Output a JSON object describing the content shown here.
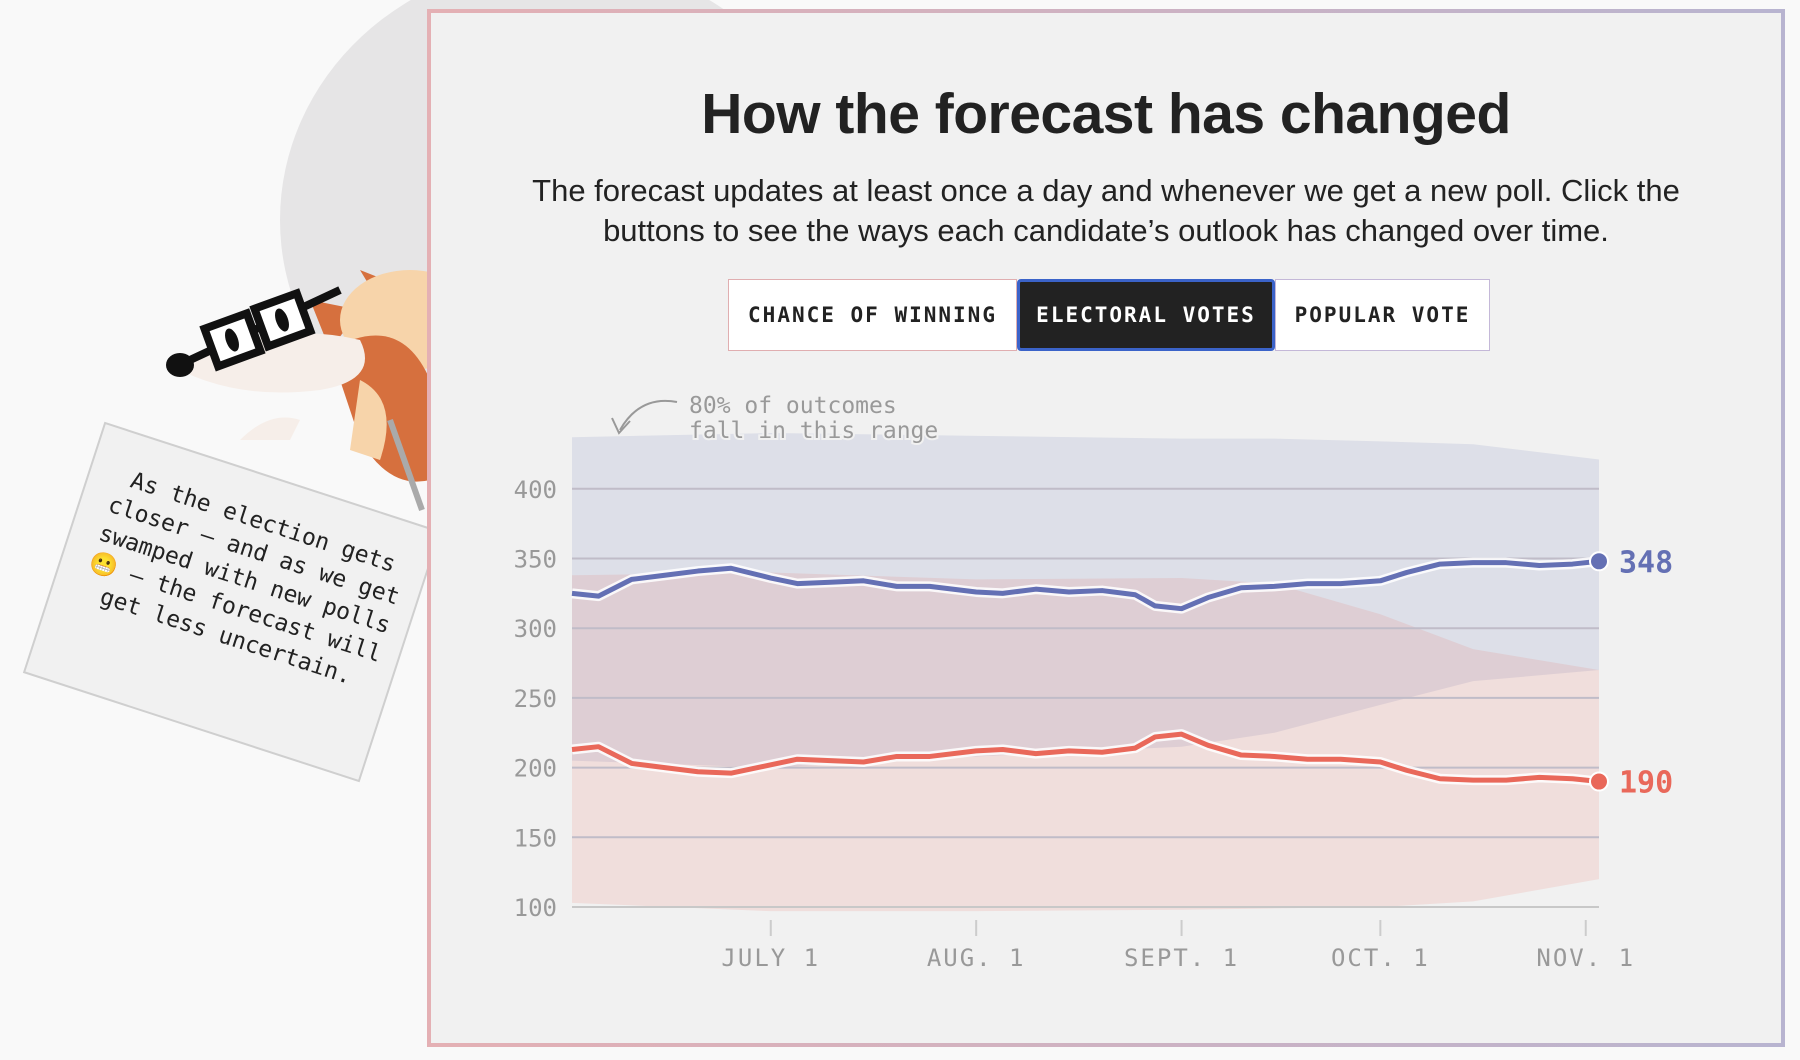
{
  "header": {
    "title": "How the forecast has changed",
    "subtitle": "The forecast updates at least once a day and whenever we get a new poll. Click the buttons to see the ways each candidate’s outlook has changed over time."
  },
  "tabs": [
    {
      "label": "CHANCE OF WINNING",
      "active": false
    },
    {
      "label": "ELECTORAL VOTES",
      "active": true
    },
    {
      "label": "POPULAR VOTE",
      "active": false
    }
  ],
  "mascot": {
    "icon": "fox-with-glasses-icon",
    "speech": "As the election gets closer — and as we get swamped with new polls 😬 — the forecast will get less uncertain."
  },
  "chart_data": {
    "type": "line",
    "annotation": "80% of outcomes fall in this range",
    "xlim": [
      "2020-06-01",
      "2020-11-03"
    ],
    "ylim": [
      100,
      430
    ],
    "yticks": [
      100,
      150,
      200,
      250,
      300,
      350,
      400
    ],
    "xticks": [
      {
        "date": "2020-07-01",
        "label": "JULY 1"
      },
      {
        "date": "2020-08-01",
        "label": "AUG. 1"
      },
      {
        "date": "2020-09-01",
        "label": "SEPT. 1"
      },
      {
        "date": "2020-10-01",
        "label": "OCT. 1"
      },
      {
        "date": "2020-11-01",
        "label": "NOV. 1"
      }
    ],
    "grid": true,
    "x": [
      "2020-06-01",
      "2020-06-05",
      "2020-06-10",
      "2020-06-15",
      "2020-06-20",
      "2020-06-25",
      "2020-07-01",
      "2020-07-05",
      "2020-07-10",
      "2020-07-15",
      "2020-07-20",
      "2020-07-25",
      "2020-08-01",
      "2020-08-05",
      "2020-08-10",
      "2020-08-15",
      "2020-08-20",
      "2020-08-25",
      "2020-08-28",
      "2020-09-01",
      "2020-09-05",
      "2020-09-10",
      "2020-09-15",
      "2020-09-20",
      "2020-09-25",
      "2020-10-01",
      "2020-10-05",
      "2020-10-10",
      "2020-10-15",
      "2020-10-20",
      "2020-10-25",
      "2020-10-30",
      "2020-11-03"
    ],
    "series": [
      {
        "color": "#6470b4",
        "end_label": "348",
        "values": [
          325,
          323,
          335,
          338,
          341,
          343,
          336,
          332,
          333,
          334,
          330,
          330,
          326,
          325,
          328,
          326,
          327,
          324,
          316,
          314,
          322,
          329,
          330,
          332,
          332,
          334,
          340,
          346,
          347,
          347,
          345,
          346,
          348
        ]
      },
      {
        "color": "#e9685a",
        "end_label": "190",
        "values": [
          213,
          215,
          203,
          200,
          197,
          196,
          202,
          206,
          205,
          204,
          208,
          208,
          212,
          213,
          210,
          212,
          211,
          214,
          222,
          224,
          216,
          209,
          208,
          206,
          206,
          204,
          198,
          192,
          191,
          191,
          193,
          192,
          190
        ]
      }
    ],
    "bands": {
      "x": [
        "2020-06-01",
        "2020-07-01",
        "2020-08-01",
        "2020-09-01",
        "2020-09-15",
        "2020-10-01",
        "2020-10-15",
        "2020-11-03"
      ],
      "blue": {
        "low": [
          205,
          200,
          208,
          215,
          225,
          245,
          262,
          270
        ],
        "high": [
          437,
          440,
          438,
          436,
          436,
          434,
          432,
          421
        ],
        "color": "#6470b4"
      },
      "red": {
        "low": [
          103,
          97,
          97,
          98,
          99,
          100,
          104,
          120
        ],
        "high": [
          338,
          340,
          335,
          336,
          332,
          310,
          285,
          270
        ],
        "color": "#e9685a"
      }
    }
  }
}
